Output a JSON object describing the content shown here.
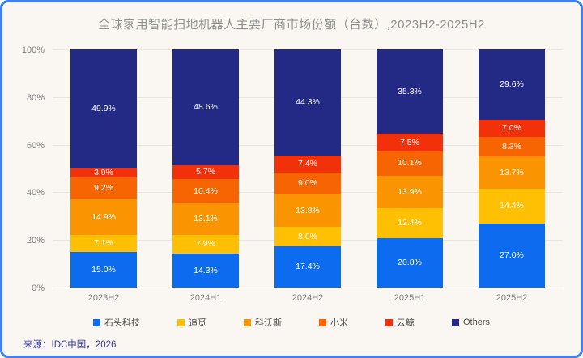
{
  "chart_data": {
    "type": "bar",
    "stacked": true,
    "title": "全球家用智能扫地机器人主要厂商市场份额（台数）,2023H2-2025H2",
    "categories": [
      "2023H2",
      "2024H1",
      "2024H2",
      "2025H1",
      "2025H2"
    ],
    "series": [
      {
        "name": "石头科技",
        "color": "#0d6bef",
        "values": [
          15.0,
          14.3,
          17.4,
          20.8,
          27.0
        ]
      },
      {
        "name": "追觅",
        "color": "#ffc003",
        "values": [
          7.1,
          7.9,
          8.0,
          12.4,
          14.4
        ]
      },
      {
        "name": "科沃斯",
        "color": "#fb9401",
        "values": [
          14.9,
          13.1,
          13.8,
          13.9,
          13.7
        ]
      },
      {
        "name": "小米",
        "color": "#f76502",
        "values": [
          9.2,
          10.4,
          9.0,
          10.1,
          8.3
        ]
      },
      {
        "name": "云鲸",
        "color": "#f23009",
        "values": [
          3.9,
          5.7,
          7.4,
          7.5,
          7.0
        ]
      },
      {
        "name": "Others",
        "color": "#222a86",
        "values": [
          49.9,
          48.6,
          44.3,
          35.3,
          29.6
        ]
      }
    ],
    "yticks": [
      "0%",
      "20%",
      "40%",
      "60%",
      "80%",
      "100%"
    ],
    "ylim": [
      0,
      100
    ],
    "grid": true,
    "legend_position": "bottom",
    "data_label_format": "one-decimal-percent",
    "data_label_color": "#ffffff"
  },
  "footer": {
    "source": "来源：IDC中国，2026"
  },
  "style": {
    "frame_border_color": "#3f80f3",
    "background_color": "#faf7f3",
    "title_color": "#8e8e8e",
    "axis_label_color": "#7f7f7f",
    "gridline_color": "#e9e5df",
    "source_color": "#34349b"
  }
}
